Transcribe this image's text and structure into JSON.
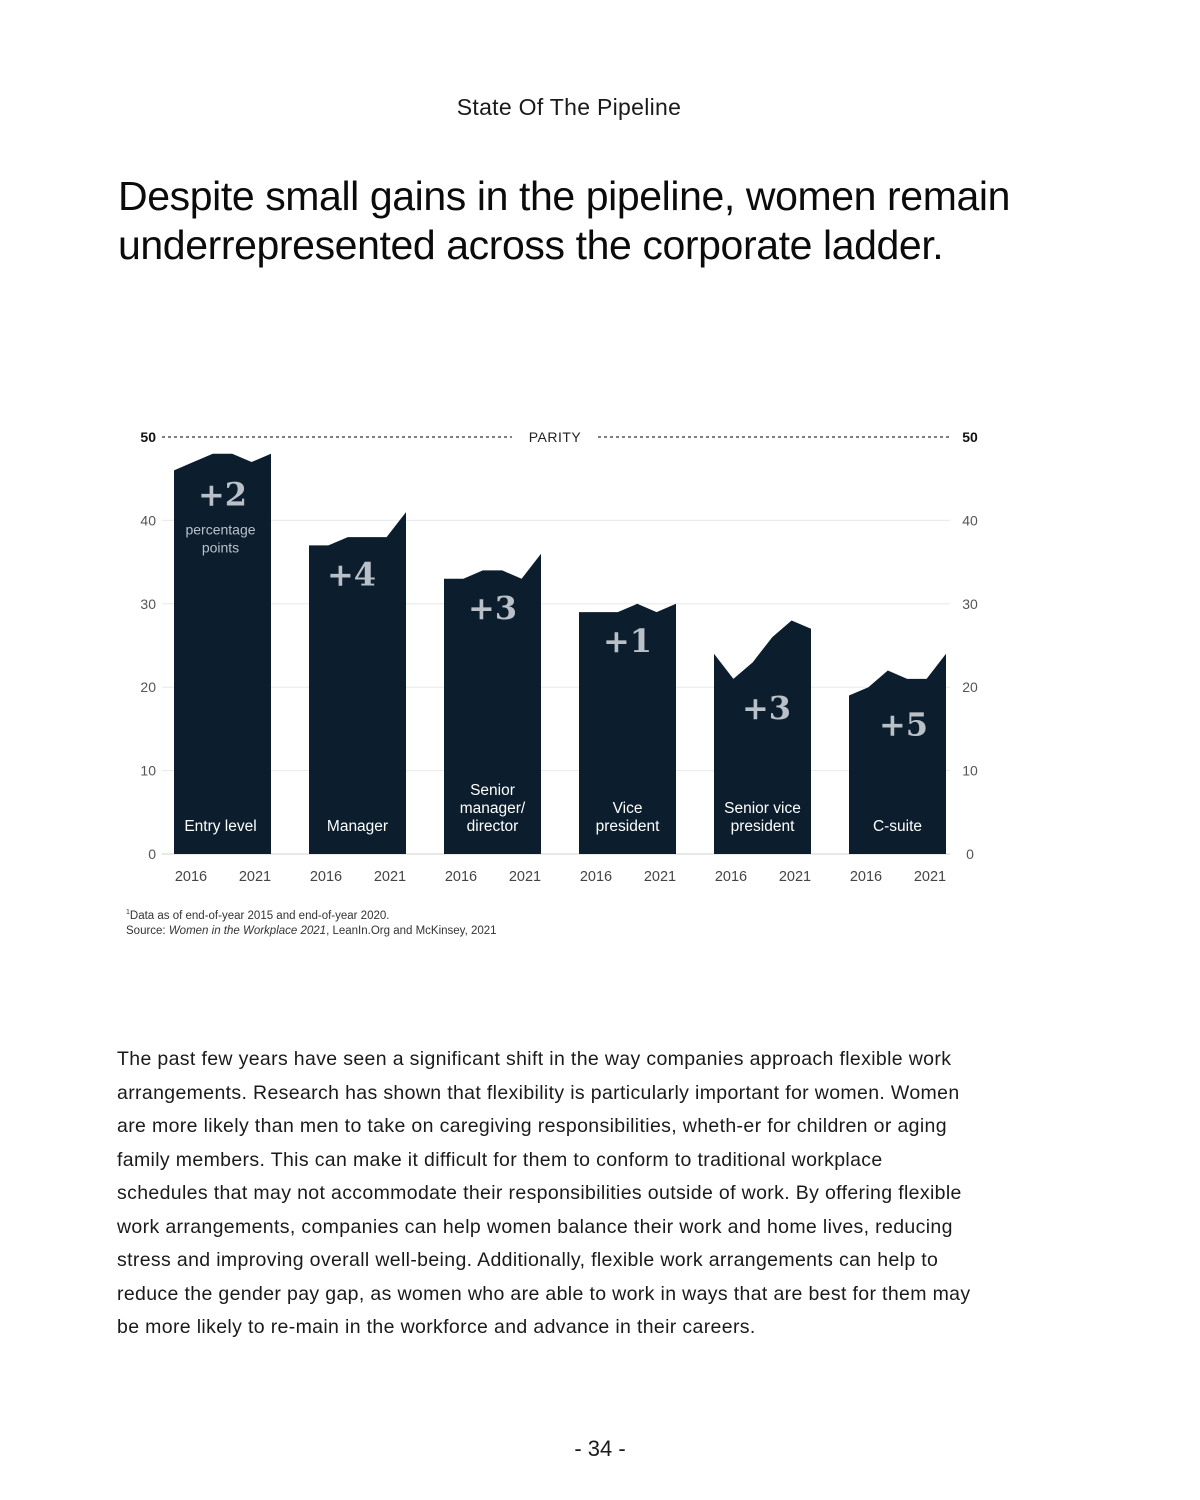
{
  "page": {
    "section_title": "State Of The Pipeline",
    "headline": "Despite small gains in the pipeline, women remain underrepresented across the corporate ladder.",
    "footnote": "Data as of end-of-year 2015 and end-of-year 2020.",
    "footnote_marker": "1",
    "source_prefix": "Source: ",
    "source_title": "Women in the Workplace 2021",
    "source_suffix": ", LeanIn.Org and McKinsey, 2021",
    "body": "The past few years have seen a significant shift in the way companies approach flexible work arrangements. Research has shown that flexibility is particularly important for women. Women are more likely than men to take on caregiving responsibilities, wheth-er for children or aging family members. This can make it difficult for them to conform to traditional workplace schedules that may not accommodate their responsibilities outside of work. By offering flexible work arrangements, companies can help women balance their work and home lives, reducing stress and improving overall well-being. Additionally, flexible work arrangements can help to reduce the gender pay gap, as women who are able to work in ways that are best for them may be more likely to re-main in the workforce and advance in their careers.",
    "page_number": "- 34 -"
  },
  "chart_data": {
    "type": "area",
    "title": "",
    "xlabel": "",
    "ylabel": "",
    "ylim": [
      0,
      50
    ],
    "yticks": [
      0,
      10,
      20,
      30,
      40,
      50
    ],
    "grid": true,
    "parity": {
      "value": 50,
      "label": "PARITY"
    },
    "x_tick_labels": [
      "2016",
      "2021"
    ],
    "unit_note": "percentage points",
    "colors": {
      "fill": "#0c1e2e",
      "delta": "#b9c0c8",
      "inner_label": "#ffffff",
      "axis": "#333333",
      "grid": "#e8e8e8"
    },
    "series": [
      {
        "name": "Entry level",
        "label_lines": [
          "Entry level"
        ],
        "values": [
          46,
          47,
          48,
          48,
          47,
          48
        ],
        "change": "+2"
      },
      {
        "name": "Manager",
        "label_lines": [
          "Manager"
        ],
        "values": [
          37,
          37,
          38,
          38,
          38,
          41
        ],
        "change": "+4"
      },
      {
        "name": "Senior manager/director",
        "label_lines": [
          "Senior",
          "manager/",
          "director"
        ],
        "values": [
          33,
          33,
          34,
          34,
          33,
          36
        ],
        "change": "+3"
      },
      {
        "name": "Vice president",
        "label_lines": [
          "Vice",
          "president"
        ],
        "values": [
          29,
          29,
          29,
          30,
          29,
          30
        ],
        "change": "+1"
      },
      {
        "name": "Senior vice president",
        "label_lines": [
          "Senior vice",
          "president"
        ],
        "values": [
          24,
          21,
          23,
          26,
          28,
          27
        ],
        "change": "+3"
      },
      {
        "name": "C-suite",
        "label_lines": [
          "C-suite"
        ],
        "values": [
          19,
          20,
          22,
          21,
          21,
          24
        ],
        "change": "+5"
      }
    ]
  }
}
